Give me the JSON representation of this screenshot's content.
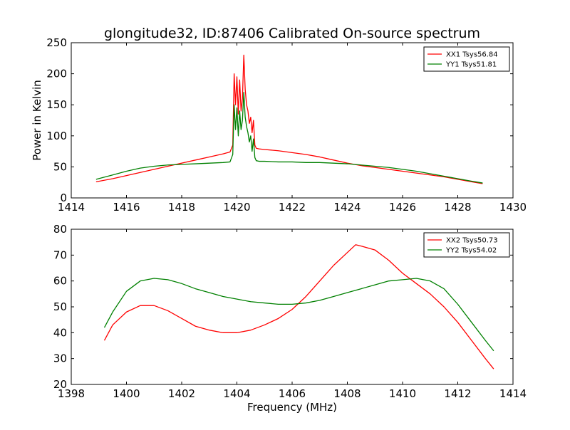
{
  "figure": {
    "title": "glongitude32, ID:87406 Calibrated On-source spectrum",
    "xlabel": "Frequency (MHz)",
    "ylabel": "Power in Kelvin"
  },
  "chart_data": [
    {
      "type": "line",
      "title": "glongitude32, ID:87406 Calibrated On-source spectrum",
      "xlabel": "",
      "ylabel": "Power in Kelvin",
      "xlim": [
        1414,
        1430
      ],
      "ylim": [
        0,
        250
      ],
      "xticks": [
        "1414",
        "1416",
        "1418",
        "1420",
        "1422",
        "1424",
        "1426",
        "1428",
        "1430"
      ],
      "yticks": [
        "0",
        "50",
        "100",
        "150",
        "200",
        "250"
      ],
      "legend_position": "top-right",
      "grid": false,
      "series": [
        {
          "name": "XX1 Tsys56.84",
          "color": "#ff0000",
          "x": [
            1414.9,
            1415.5,
            1416,
            1416.5,
            1417,
            1417.5,
            1418,
            1418.5,
            1419,
            1419.5,
            1419.75,
            1419.85,
            1419.9,
            1419.95,
            1420.0,
            1420.05,
            1420.1,
            1420.15,
            1420.2,
            1420.25,
            1420.3,
            1420.35,
            1420.4,
            1420.45,
            1420.5,
            1420.55,
            1420.6,
            1420.65,
            1420.7,
            1420.8,
            1421,
            1421.5,
            1422,
            1422.5,
            1423,
            1423.5,
            1424,
            1424.5,
            1425,
            1425.5,
            1426,
            1426.5,
            1427,
            1427.5,
            1428,
            1428.5,
            1428.9
          ],
          "y": [
            26,
            31,
            36,
            41,
            46,
            51,
            56,
            61,
            66,
            71,
            74,
            85,
            200,
            150,
            195,
            135,
            190,
            140,
            160,
            230,
            175,
            150,
            140,
            120,
            130,
            105,
            125,
            85,
            80,
            79,
            78,
            76,
            73,
            70,
            66,
            61,
            56,
            52,
            49,
            46,
            43,
            40,
            37,
            34,
            30,
            26,
            23
          ]
        },
        {
          "name": "YY1 Tsys51.81",
          "color": "#008000",
          "x": [
            1414.9,
            1415.5,
            1416,
            1416.5,
            1417,
            1417.5,
            1418,
            1418.5,
            1419,
            1419.5,
            1419.75,
            1419.85,
            1419.9,
            1419.95,
            1420.0,
            1420.05,
            1420.1,
            1420.15,
            1420.2,
            1420.25,
            1420.3,
            1420.35,
            1420.4,
            1420.45,
            1420.5,
            1420.55,
            1420.6,
            1420.65,
            1420.7,
            1420.8,
            1421,
            1421.5,
            1422,
            1422.5,
            1423,
            1423.5,
            1424,
            1424.5,
            1425,
            1425.5,
            1426,
            1426.5,
            1427,
            1427.5,
            1428,
            1428.5,
            1428.9
          ],
          "y": [
            30,
            37,
            43,
            48,
            51,
            53,
            54,
            55,
            56,
            57,
            58,
            70,
            150,
            110,
            145,
            100,
            140,
            110,
            125,
            170,
            130,
            115,
            105,
            90,
            100,
            75,
            95,
            65,
            60,
            59,
            59,
            58,
            58,
            57,
            57,
            56,
            55,
            53,
            51,
            49,
            46,
            43,
            39,
            35,
            31,
            27,
            24
          ]
        }
      ]
    },
    {
      "type": "line",
      "title": "",
      "xlabel": "Frequency (MHz)",
      "ylabel": "",
      "xlim": [
        1398,
        1414
      ],
      "ylim": [
        20,
        80
      ],
      "xticks": [
        "1398",
        "1400",
        "1402",
        "1404",
        "1406",
        "1408",
        "1410",
        "1412",
        "1414"
      ],
      "yticks": [
        "20",
        "30",
        "40",
        "50",
        "60",
        "70",
        "80"
      ],
      "legend_position": "top-right",
      "grid": false,
      "series": [
        {
          "name": "XX2 Tsys50.73",
          "color": "#ff0000",
          "x": [
            1399.2,
            1399.5,
            1400,
            1400.5,
            1401,
            1401.5,
            1402,
            1402.5,
            1403,
            1403.5,
            1404,
            1404.5,
            1405,
            1405.5,
            1406,
            1406.5,
            1407,
            1407.5,
            1408,
            1408.3,
            1408.5,
            1409,
            1409.5,
            1410,
            1410.5,
            1411,
            1411.5,
            1412,
            1412.5,
            1413,
            1413.3
          ],
          "y": [
            37,
            43,
            48,
            50.5,
            50.5,
            48.5,
            45.5,
            42.5,
            41,
            40,
            40,
            41,
            43,
            45.5,
            49,
            54,
            60,
            66,
            71,
            74,
            73.5,
            72,
            68,
            63,
            59,
            55,
            50,
            44,
            37,
            30,
            26
          ]
        },
        {
          "name": "YY2 Tsys54.02",
          "color": "#008000",
          "x": [
            1399.2,
            1399.5,
            1400,
            1400.5,
            1401,
            1401.5,
            1402,
            1402.5,
            1403,
            1403.5,
            1404,
            1404.5,
            1405,
            1405.5,
            1406,
            1406.5,
            1407,
            1407.5,
            1408,
            1408.5,
            1409,
            1409.5,
            1410,
            1410.5,
            1411,
            1411.5,
            1412,
            1412.5,
            1413,
            1413.3
          ],
          "y": [
            42,
            48,
            56,
            60,
            61,
            60.5,
            59,
            57,
            55.5,
            54,
            53,
            52,
            51.5,
            51,
            51,
            51.5,
            52.5,
            54,
            55.5,
            57,
            58.5,
            60,
            60.5,
            61,
            60,
            57,
            51,
            44,
            37,
            33
          ]
        }
      ]
    }
  ]
}
